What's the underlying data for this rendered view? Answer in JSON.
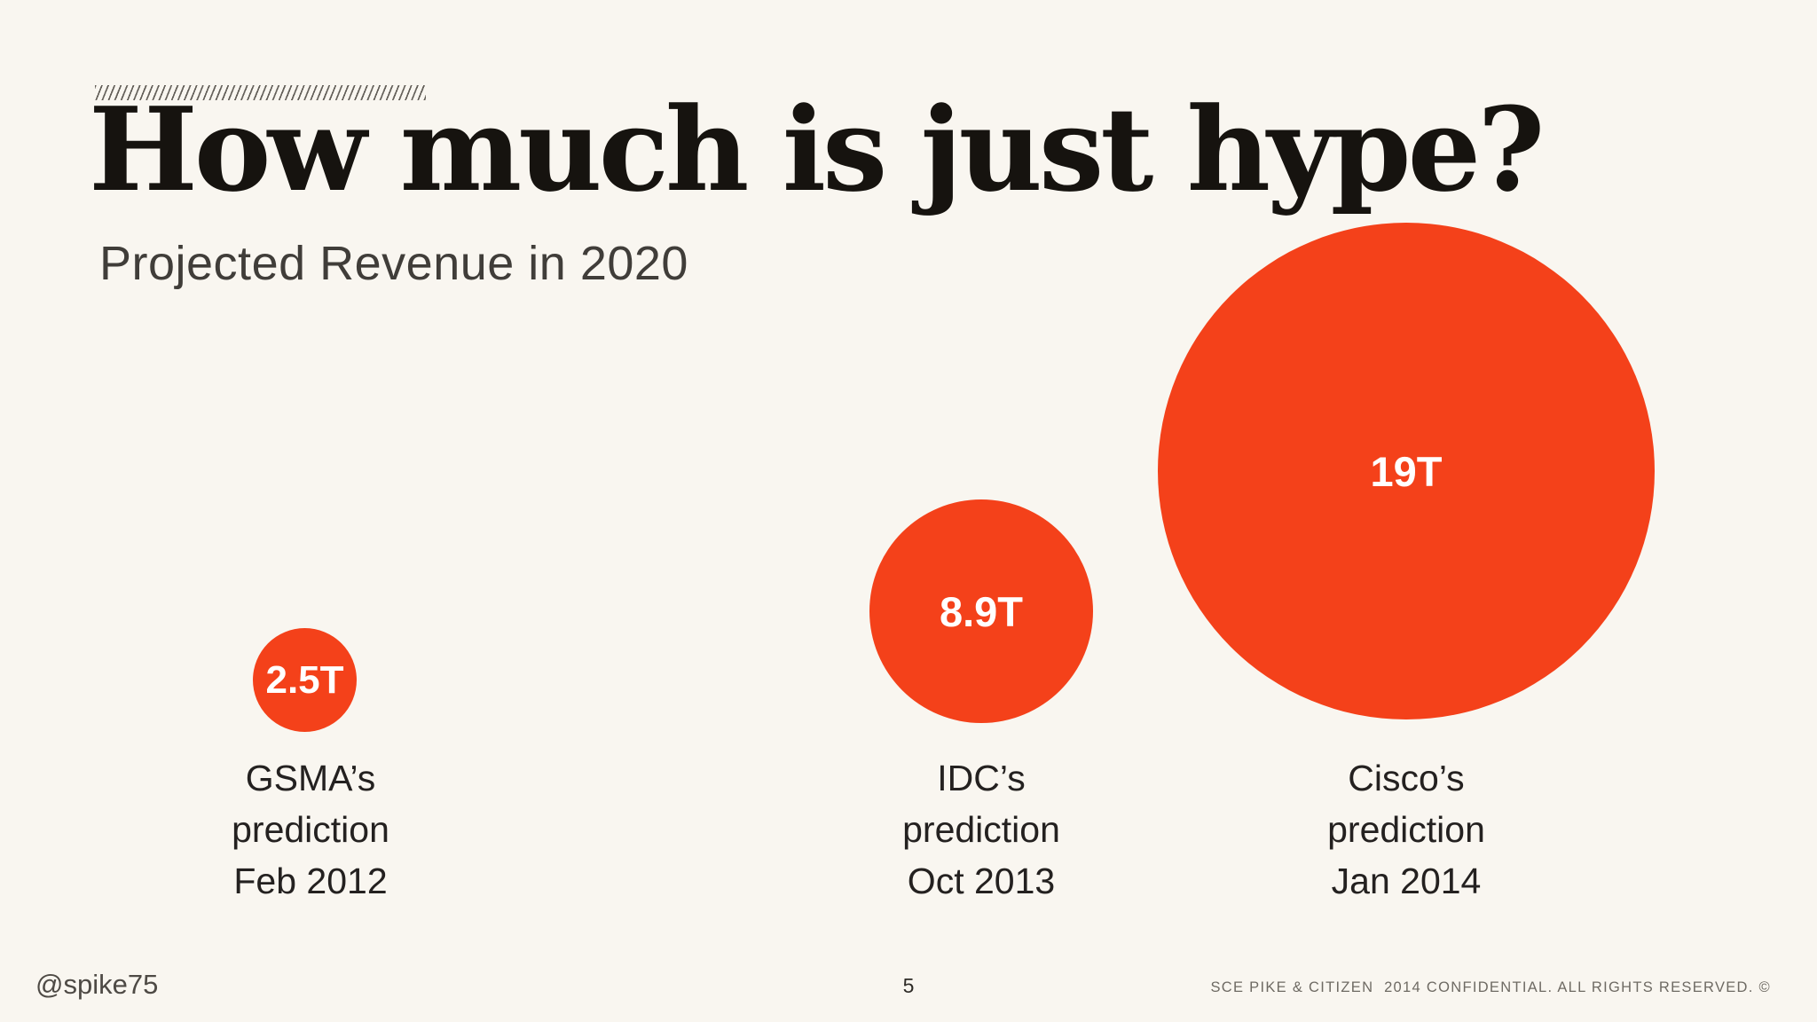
{
  "slide": {
    "title": "How much is just hype?",
    "subtitle": "Projected Revenue in 2020"
  },
  "bubbles": [
    {
      "value": "2.5T",
      "lines": [
        "GSMA’s",
        "prediction",
        "Feb 2012"
      ]
    },
    {
      "value": "8.9T",
      "lines": [
        "IDC’s",
        "prediction",
        "Oct 2013"
      ]
    },
    {
      "value": "19T",
      "lines": [
        "Cisco’s",
        "prediction",
        "Jan 2014"
      ]
    }
  ],
  "footer": {
    "handle": "@spike75",
    "page_number": "5",
    "legal": "SCE PIKE & CITIZEN  2014 CONFIDENTIAL. ALL RIGHTS RESERVED. ©"
  },
  "colors": {
    "accent": "#F4411A",
    "background": "#F9F6F0",
    "title_text": "#16130F",
    "body_text": "#242120",
    "muted_text": "#6E6A63"
  },
  "chart_data": {
    "type": "scatter",
    "subtype": "proportional-bubble",
    "title": "How much is just hype?",
    "subtitle": "Projected Revenue in 2020",
    "unit_suffix": "T",
    "legend": "none",
    "axes": "none",
    "points": [
      {
        "source": "GSMA’s prediction",
        "date": "Feb 2012",
        "value": 2.5,
        "display_value": "2.5T"
      },
      {
        "source": "IDC’s prediction",
        "date": "Oct 2013",
        "value": 8.9,
        "display_value": "8.9T"
      },
      {
        "source": "Cisco’s prediction",
        "date": "Jan 2014",
        "value": 19.0,
        "display_value": "19T"
      }
    ]
  }
}
